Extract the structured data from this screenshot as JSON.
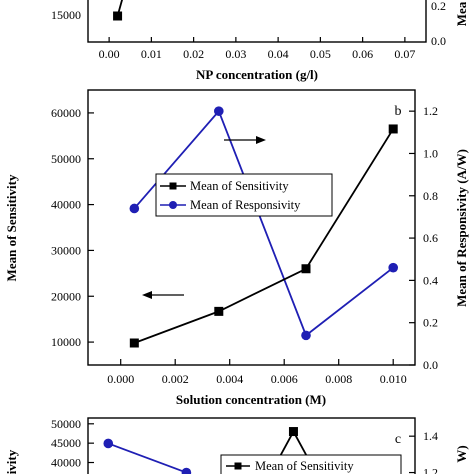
{
  "colors": {
    "sensitivity": "#000000",
    "responsivity": "#1f1fb4",
    "axis": "#000000"
  },
  "chart_data": [
    {
      "panel": "a (partially visible)",
      "type": "line",
      "xlabel": "NP concentration (g/l)",
      "x_ticks": [
        "0.00",
        "0.01",
        "0.02",
        "0.03",
        "0.04",
        "0.05",
        "0.06",
        "0.07"
      ],
      "xlim": [
        -0.005,
        0.075
      ],
      "left_y_ticks": [
        "15000"
      ],
      "right_y_ticks": [
        "0.0",
        "0.2"
      ],
      "right_ylabel_fragment": "Mea",
      "series": [
        {
          "name": "Mean of Sensitivity",
          "axis": "left",
          "marker": "square",
          "x": [
            0.002
          ],
          "y": [
            14000
          ]
        }
      ]
    },
    {
      "panel": "b",
      "type": "line",
      "letter": "b",
      "xlabel": "Solution concentration (M)",
      "ylabel_left": "Mean of Sensitivity",
      "ylabel_right": "Mean of Responsivity (A/W)",
      "x_ticks": [
        "0.000",
        "0.002",
        "0.004",
        "0.006",
        "0.008",
        "0.010"
      ],
      "xlim": [
        -0.0012,
        0.0108
      ],
      "left_y_ticks": [
        "10000",
        "20000",
        "30000",
        "40000",
        "50000",
        "60000"
      ],
      "ylim_left": [
        5000,
        65000
      ],
      "right_y_ticks": [
        "0.0",
        "0.2",
        "0.4",
        "0.6",
        "0.8",
        "1.0",
        "1.2"
      ],
      "ylim_right": [
        0,
        1.3
      ],
      "legend": [
        "Mean of  Sensitivity",
        "Mean of Responsivity"
      ],
      "series": [
        {
          "name": "Mean of  Sensitivity",
          "axis": "left",
          "marker": "square",
          "x": [
            0.0005,
            0.0036,
            0.0068,
            0.01
          ],
          "y": [
            9800,
            16700,
            26000,
            56500
          ]
        },
        {
          "name": "Mean of Responsivity",
          "axis": "right",
          "marker": "circle",
          "x": [
            0.0005,
            0.0036,
            0.0068,
            0.01
          ],
          "y": [
            0.74,
            1.2,
            0.14,
            0.46
          ]
        }
      ]
    },
    {
      "panel": "c (partially visible)",
      "type": "line",
      "letter": "c",
      "ylabel_left_fragment": "itivity",
      "ylabel_right_fragment": "W)",
      "left_y_ticks": [
        "40000",
        "45000",
        "50000"
      ],
      "ylim_left": [
        36000,
        51500
      ],
      "right_y_ticks": [
        "1.2",
        "1.4"
      ],
      "legend": [
        "Mean of  Sensitivity"
      ],
      "series": [
        {
          "name": "Mean of  Sensitivity",
          "axis": "left",
          "marker": "square",
          "x_index": [
            2.8,
            3.2,
            3.6
          ],
          "y": [
            37000,
            48000,
            37000
          ]
        },
        {
          "name": "Mean of Responsivity",
          "axis": "right",
          "marker": "circle",
          "x_index": [
            0,
            1.35
          ],
          "y": [
            1.36,
            1.2
          ]
        }
      ]
    }
  ]
}
